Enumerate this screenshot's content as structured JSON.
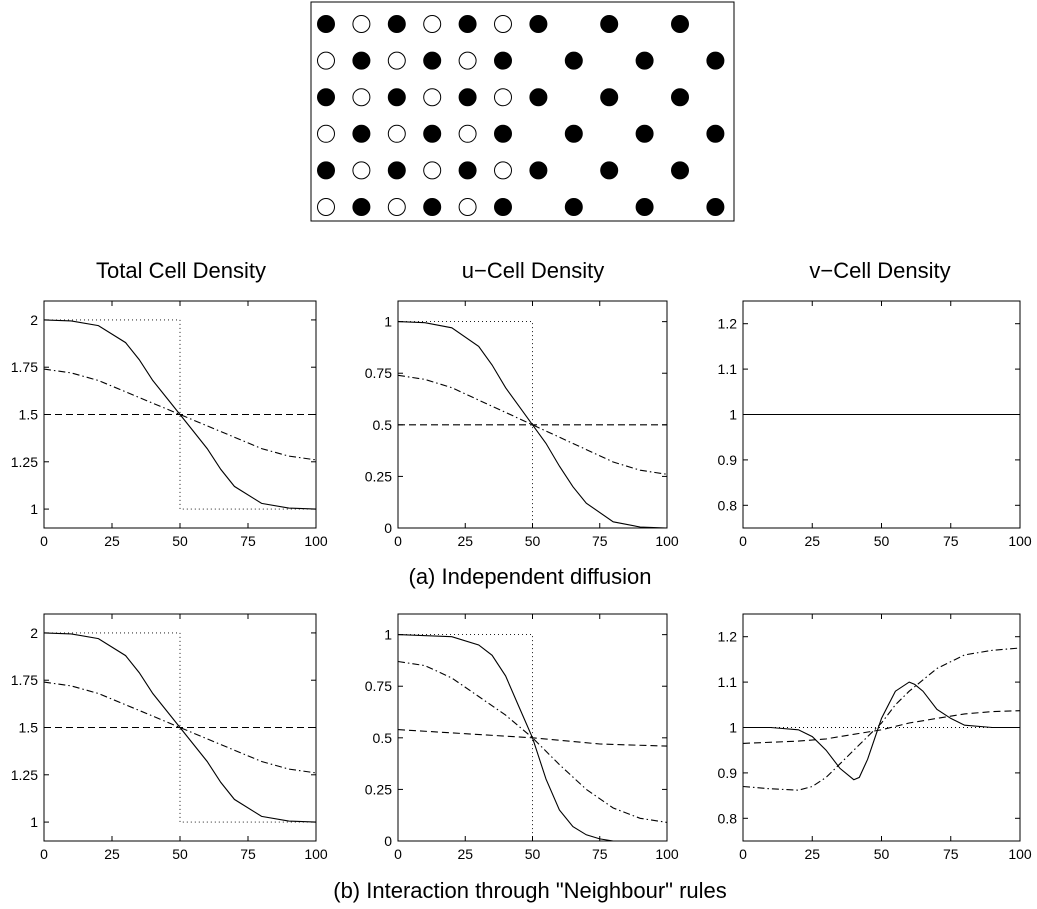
{
  "column_titles": [
    "Total Cell Density",
    "u−Cell Density",
    "v−Cell Density"
  ],
  "captions": [
    "(a) Independent diffusion",
    "(b) Interaction through \"Neighbour\" rules"
  ],
  "lattice": {
    "rows": [
      [
        "filled",
        "empty",
        "filled",
        "empty",
        "filled",
        "empty",
        "filled",
        "blank",
        "filled",
        "blank",
        "filled",
        "blank"
      ],
      [
        "empty",
        "filled",
        "empty",
        "filled",
        "empty",
        "filled",
        "blank",
        "filled",
        "blank",
        "filled",
        "blank",
        "filled"
      ],
      [
        "filled",
        "empty",
        "filled",
        "empty",
        "filled",
        "empty",
        "filled",
        "blank",
        "filled",
        "blank",
        "filled",
        "blank"
      ],
      [
        "empty",
        "filled",
        "empty",
        "filled",
        "empty",
        "filled",
        "blank",
        "filled",
        "blank",
        "filled",
        "blank",
        "filled"
      ],
      [
        "filled",
        "empty",
        "filled",
        "empty",
        "filled",
        "empty",
        "filled",
        "blank",
        "filled",
        "blank",
        "filled",
        "blank"
      ],
      [
        "empty",
        "filled",
        "empty",
        "filled",
        "empty",
        "filled",
        "blank",
        "filled",
        "blank",
        "filled",
        "blank",
        "filled"
      ]
    ]
  },
  "chart_data": [
    {
      "id": "a-total",
      "type": "line",
      "xlim": [
        0,
        100
      ],
      "ylim": [
        0.9,
        2.1
      ],
      "xticks": [
        "0",
        "25",
        "50",
        "75",
        "100"
      ],
      "yticks": [
        "1",
        "1.25",
        "1.5",
        "1.75",
        "2"
      ],
      "ytick_values": [
        1,
        1.25,
        1.5,
        1.75,
        2
      ],
      "series": [
        {
          "style": "dotted",
          "x": [
            0,
            50,
            50,
            100
          ],
          "y": [
            2,
            2,
            1,
            1
          ]
        },
        {
          "style": "solid",
          "x": [
            0,
            10,
            20,
            30,
            35,
            40,
            45,
            50,
            55,
            60,
            65,
            70,
            80,
            90,
            100
          ],
          "y": [
            2.0,
            1.995,
            1.97,
            1.88,
            1.79,
            1.68,
            1.59,
            1.5,
            1.41,
            1.32,
            1.21,
            1.12,
            1.03,
            1.005,
            1.0
          ]
        },
        {
          "style": "dashdot",
          "x": [
            0,
            10,
            20,
            30,
            40,
            50,
            60,
            70,
            80,
            90,
            100
          ],
          "y": [
            1.74,
            1.72,
            1.68,
            1.62,
            1.56,
            1.5,
            1.44,
            1.38,
            1.32,
            1.28,
            1.26
          ]
        },
        {
          "style": "dashed",
          "x": [
            0,
            100
          ],
          "y": [
            1.5,
            1.5
          ]
        }
      ]
    },
    {
      "id": "a-u",
      "type": "line",
      "xlim": [
        0,
        100
      ],
      "ylim": [
        0,
        1.1
      ],
      "xticks": [
        "0",
        "25",
        "50",
        "75",
        "100"
      ],
      "yticks": [
        "0",
        "0.25",
        "0.5",
        "0.75",
        "1"
      ],
      "ytick_values": [
        0,
        0.25,
        0.5,
        0.75,
        1
      ],
      "series": [
        {
          "style": "dotted",
          "x": [
            0,
            50,
            50,
            100
          ],
          "y": [
            1,
            1,
            0,
            0
          ]
        },
        {
          "style": "solid",
          "x": [
            0,
            10,
            20,
            30,
            35,
            40,
            45,
            50,
            55,
            60,
            65,
            70,
            80,
            90,
            100
          ],
          "y": [
            1.0,
            0.995,
            0.97,
            0.88,
            0.79,
            0.68,
            0.59,
            0.5,
            0.41,
            0.3,
            0.2,
            0.12,
            0.03,
            0.005,
            0.0
          ]
        },
        {
          "style": "dashdot",
          "x": [
            0,
            10,
            20,
            30,
            40,
            50,
            60,
            70,
            80,
            90,
            100
          ],
          "y": [
            0.74,
            0.72,
            0.68,
            0.62,
            0.56,
            0.5,
            0.44,
            0.38,
            0.32,
            0.28,
            0.26
          ]
        },
        {
          "style": "dashed",
          "x": [
            0,
            100
          ],
          "y": [
            0.5,
            0.5
          ]
        }
      ]
    },
    {
      "id": "a-v",
      "type": "line",
      "xlim": [
        0,
        100
      ],
      "ylim": [
        0.75,
        1.25
      ],
      "xticks": [
        "0",
        "25",
        "50",
        "75",
        "100"
      ],
      "yticks": [
        "0.8",
        "0.9",
        "1",
        "1.1",
        "1.2"
      ],
      "ytick_values": [
        0.8,
        0.9,
        1,
        1.1,
        1.2
      ],
      "series": [
        {
          "style": "solid",
          "x": [
            0,
            100
          ],
          "y": [
            1,
            1
          ]
        }
      ]
    },
    {
      "id": "b-total",
      "type": "line",
      "xlim": [
        0,
        100
      ],
      "ylim": [
        0.9,
        2.1
      ],
      "xticks": [
        "0",
        "25",
        "50",
        "75",
        "100"
      ],
      "yticks": [
        "1",
        "1.25",
        "1.5",
        "1.75",
        "2"
      ],
      "ytick_values": [
        1,
        1.25,
        1.5,
        1.75,
        2
      ],
      "series": [
        {
          "style": "dotted",
          "x": [
            0,
            50,
            50,
            100
          ],
          "y": [
            2,
            2,
            1,
            1
          ]
        },
        {
          "style": "solid",
          "x": [
            0,
            10,
            20,
            30,
            35,
            40,
            45,
            50,
            55,
            60,
            65,
            70,
            80,
            90,
            100
          ],
          "y": [
            2.0,
            1.995,
            1.97,
            1.88,
            1.79,
            1.68,
            1.59,
            1.5,
            1.41,
            1.32,
            1.21,
            1.12,
            1.03,
            1.005,
            1.0
          ]
        },
        {
          "style": "dashdot",
          "x": [
            0,
            10,
            20,
            30,
            40,
            50,
            60,
            70,
            80,
            90,
            100
          ],
          "y": [
            1.74,
            1.72,
            1.68,
            1.62,
            1.56,
            1.5,
            1.44,
            1.38,
            1.32,
            1.28,
            1.26
          ]
        },
        {
          "style": "dashed",
          "x": [
            0,
            100
          ],
          "y": [
            1.5,
            1.5
          ]
        }
      ]
    },
    {
      "id": "b-u",
      "type": "line",
      "xlim": [
        0,
        100
      ],
      "ylim": [
        0,
        1.1
      ],
      "xticks": [
        "0",
        "25",
        "50",
        "75",
        "100"
      ],
      "yticks": [
        "0",
        "0.25",
        "0.5",
        "0.75",
        "1"
      ],
      "ytick_values": [
        0,
        0.25,
        0.5,
        0.75,
        1
      ],
      "series": [
        {
          "style": "dotted",
          "x": [
            0,
            50,
            50,
            100
          ],
          "y": [
            1,
            1,
            0,
            0
          ]
        },
        {
          "style": "solid",
          "x": [
            0,
            20,
            30,
            35,
            40,
            45,
            50,
            55,
            60,
            65,
            70,
            75,
            80,
            100
          ],
          "y": [
            1.0,
            0.99,
            0.95,
            0.9,
            0.8,
            0.65,
            0.5,
            0.3,
            0.15,
            0.07,
            0.03,
            0.01,
            0.0,
            0.0
          ]
        },
        {
          "style": "dashdot",
          "x": [
            0,
            10,
            20,
            30,
            40,
            50,
            60,
            70,
            80,
            90,
            100
          ],
          "y": [
            0.87,
            0.85,
            0.79,
            0.7,
            0.61,
            0.5,
            0.37,
            0.25,
            0.16,
            0.11,
            0.09
          ]
        },
        {
          "style": "dashed",
          "x": [
            0,
            25,
            50,
            75,
            100
          ],
          "y": [
            0.54,
            0.52,
            0.5,
            0.47,
            0.46
          ]
        }
      ]
    },
    {
      "id": "b-v",
      "type": "line",
      "xlim": [
        0,
        100
      ],
      "ylim": [
        0.75,
        1.25
      ],
      "xticks": [
        "0",
        "25",
        "50",
        "75",
        "100"
      ],
      "yticks": [
        "0.8",
        "0.9",
        "1",
        "1.1",
        "1.2"
      ],
      "ytick_values": [
        0.8,
        0.9,
        1,
        1.1,
        1.2
      ],
      "series": [
        {
          "style": "dotted",
          "x": [
            0,
            100
          ],
          "y": [
            1,
            1
          ]
        },
        {
          "style": "solid",
          "x": [
            0,
            10,
            20,
            25,
            30,
            35,
            40,
            42,
            45,
            50,
            55,
            60,
            62,
            65,
            70,
            75,
            80,
            90,
            100
          ],
          "y": [
            1.0,
            1.0,
            0.995,
            0.98,
            0.95,
            0.91,
            0.885,
            0.89,
            0.93,
            1.02,
            1.08,
            1.1,
            1.095,
            1.08,
            1.04,
            1.02,
            1.005,
            1.0,
            1.0
          ]
        },
        {
          "style": "dashdot",
          "x": [
            0,
            10,
            20,
            25,
            30,
            35,
            40,
            45,
            50,
            55,
            60,
            70,
            80,
            90,
            100
          ],
          "y": [
            0.87,
            0.865,
            0.862,
            0.87,
            0.89,
            0.92,
            0.95,
            0.98,
            1.01,
            1.05,
            1.08,
            1.13,
            1.16,
            1.17,
            1.175
          ]
        },
        {
          "style": "dashed",
          "x": [
            0,
            20,
            30,
            40,
            50,
            60,
            70,
            80,
            90,
            100
          ],
          "y": [
            0.965,
            0.97,
            0.975,
            0.985,
            0.995,
            1.01,
            1.02,
            1.03,
            1.035,
            1.037
          ]
        }
      ]
    }
  ]
}
